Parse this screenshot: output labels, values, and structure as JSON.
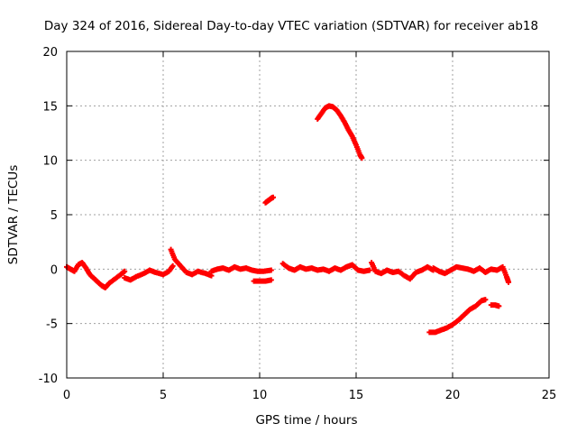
{
  "chart_data": {
    "type": "scatter",
    "title": "Day 324 of 2016, Sidereal Day-to-day VTEC variation (SDTVAR) for receiver ab18",
    "xlabel": "GPS time / hours",
    "ylabel": "SDTVAR / TECUs",
    "xlim": [
      0,
      25
    ],
    "ylim": [
      -10,
      20
    ],
    "xticks": [
      0,
      5,
      10,
      15,
      20,
      25
    ],
    "yticks": [
      -10,
      -5,
      0,
      5,
      10,
      15,
      20
    ],
    "xtick_labels": [
      "0",
      "5",
      "10",
      "15",
      "20",
      "25"
    ],
    "ytick_labels": [
      "-10",
      "-5",
      "0",
      "5",
      "10",
      "15",
      "20"
    ],
    "grid": true,
    "marker": "+",
    "series": [
      {
        "name": "SDTVAR",
        "color": "#ff0000",
        "segments": [
          {
            "label": "near-zero band 0-3 h",
            "points": [
              [
                0.0,
                0.2
              ],
              [
                0.2,
                0.0
              ],
              [
                0.4,
                -0.2
              ],
              [
                0.6,
                0.4
              ],
              [
                0.8,
                0.6
              ],
              [
                1.0,
                0.1
              ],
              [
                1.2,
                -0.5
              ],
              [
                1.5,
                -1.0
              ],
              [
                1.8,
                -1.5
              ],
              [
                2.0,
                -1.7
              ],
              [
                2.2,
                -1.3
              ],
              [
                2.5,
                -0.9
              ],
              [
                2.8,
                -0.5
              ],
              [
                3.0,
                -0.2
              ]
            ]
          },
          {
            "label": "near-zero band 3-5.5 h",
            "points": [
              [
                3.0,
                -0.8
              ],
              [
                3.3,
                -1.0
              ],
              [
                3.6,
                -0.7
              ],
              [
                4.0,
                -0.4
              ],
              [
                4.3,
                -0.1
              ],
              [
                4.6,
                -0.3
              ],
              [
                5.0,
                -0.5
              ],
              [
                5.3,
                -0.2
              ],
              [
                5.5,
                0.3
              ]
            ]
          },
          {
            "label": "near-zero band 5.5-7.5 h",
            "points": [
              [
                5.4,
                1.8
              ],
              [
                5.6,
                0.9
              ],
              [
                5.9,
                0.3
              ],
              [
                6.2,
                -0.3
              ],
              [
                6.5,
                -0.5
              ],
              [
                6.8,
                -0.2
              ],
              [
                7.2,
                -0.4
              ],
              [
                7.5,
                -0.6
              ]
            ]
          },
          {
            "label": "near-zero band 7.5-10.7 h",
            "points": [
              [
                7.5,
                -0.2
              ],
              [
                7.8,
                0.0
              ],
              [
                8.1,
                0.1
              ],
              [
                8.4,
                -0.1
              ],
              [
                8.7,
                0.2
              ],
              [
                9.0,
                0.0
              ],
              [
                9.3,
                0.1
              ],
              [
                9.6,
                -0.1
              ],
              [
                9.9,
                -0.2
              ],
              [
                10.2,
                -0.2
              ],
              [
                10.6,
                -0.1
              ]
            ]
          },
          {
            "label": "dip near 10 h",
            "points": [
              [
                9.7,
                -1.1
              ],
              [
                10.0,
                -1.1
              ],
              [
                10.3,
                -1.1
              ],
              [
                10.6,
                -1.0
              ]
            ]
          },
          {
            "label": "short arc 6 TECU",
            "points": [
              [
                10.3,
                6.1
              ],
              [
                10.45,
                6.3
              ],
              [
                10.6,
                6.5
              ],
              [
                10.7,
                6.6
              ]
            ]
          },
          {
            "label": "near-zero band 11-15 h",
            "points": [
              [
                11.2,
                0.5
              ],
              [
                11.5,
                0.1
              ],
              [
                11.8,
                -0.1
              ],
              [
                12.1,
                0.2
              ],
              [
                12.4,
                0.0
              ],
              [
                12.7,
                0.1
              ],
              [
                13.0,
                -0.1
              ],
              [
                13.3,
                0.0
              ],
              [
                13.6,
                -0.2
              ],
              [
                13.9,
                0.1
              ],
              [
                14.2,
                -0.1
              ],
              [
                14.5,
                0.2
              ],
              [
                14.8,
                0.4
              ],
              [
                15.1,
                -0.1
              ],
              [
                15.4,
                -0.2
              ],
              [
                15.7,
                -0.1
              ]
            ]
          },
          {
            "label": "arc peaking near 15 TECU",
            "points": [
              [
                13.0,
                13.8
              ],
              [
                13.2,
                14.3
              ],
              [
                13.4,
                14.8
              ],
              [
                13.6,
                15.0
              ],
              [
                13.8,
                14.9
              ],
              [
                14.0,
                14.6
              ],
              [
                14.2,
                14.1
              ],
              [
                14.4,
                13.5
              ],
              [
                14.6,
                12.8
              ],
              [
                14.8,
                12.2
              ],
              [
                15.0,
                11.4
              ],
              [
                15.2,
                10.5
              ],
              [
                15.3,
                10.2
              ]
            ]
          },
          {
            "label": "near-zero band 15.8-19 h",
            "points": [
              [
                15.8,
                0.6
              ],
              [
                16.0,
                -0.2
              ],
              [
                16.3,
                -0.4
              ],
              [
                16.6,
                -0.1
              ],
              [
                16.9,
                -0.3
              ],
              [
                17.2,
                -0.2
              ],
              [
                17.5,
                -0.6
              ],
              [
                17.8,
                -0.9
              ],
              [
                18.1,
                -0.3
              ],
              [
                18.4,
                -0.1
              ],
              [
                18.7,
                0.2
              ],
              [
                19.0,
                -0.1
              ]
            ]
          },
          {
            "label": "near-zero band 19-23 h",
            "points": [
              [
                19.0,
                0.1
              ],
              [
                19.3,
                -0.2
              ],
              [
                19.6,
                -0.4
              ],
              [
                19.9,
                -0.1
              ],
              [
                20.2,
                0.2
              ],
              [
                20.5,
                0.1
              ],
              [
                20.8,
                0.0
              ],
              [
                21.1,
                -0.2
              ],
              [
                21.4,
                0.1
              ],
              [
                21.7,
                -0.3
              ],
              [
                22.0,
                0.0
              ],
              [
                22.3,
                -0.1
              ],
              [
                22.6,
                0.2
              ],
              [
                22.8,
                -0.7
              ],
              [
                22.9,
                -1.2
              ]
            ]
          },
          {
            "label": "negative arc -6 to -3 TECU",
            "points": [
              [
                18.8,
                -5.8
              ],
              [
                19.1,
                -5.8
              ],
              [
                19.4,
                -5.6
              ],
              [
                19.7,
                -5.4
              ],
              [
                20.0,
                -5.1
              ],
              [
                20.3,
                -4.7
              ],
              [
                20.6,
                -4.2
              ],
              [
                20.9,
                -3.7
              ],
              [
                21.2,
                -3.4
              ],
              [
                21.5,
                -2.9
              ],
              [
                21.7,
                -2.8
              ]
            ]
          },
          {
            "label": "short negative arc",
            "points": [
              [
                22.0,
                -3.3
              ],
              [
                22.2,
                -3.3
              ],
              [
                22.4,
                -3.4
              ]
            ]
          }
        ]
      }
    ]
  }
}
